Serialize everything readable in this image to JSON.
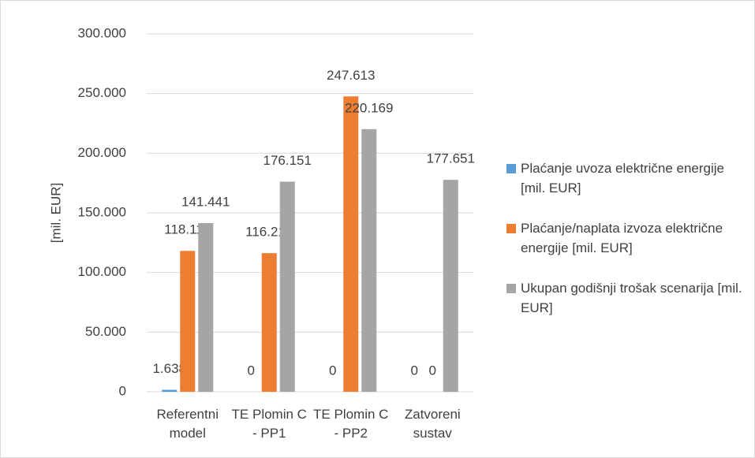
{
  "chart_data": {
    "type": "bar",
    "y_label": "[mil. EUR]",
    "categories": [
      "Referentni model",
      "TE Plomin C - PP1",
      "TE Plomin C - PP2",
      "Zatvoreni sustav"
    ],
    "series": [
      {
        "name": "Plaćanje uvoza električne energije [mil. EUR]",
        "color": "#5b9bd5",
        "values": [
          1638,
          0,
          0,
          0
        ],
        "value_labels": [
          "1.638",
          "0",
          "0",
          "0"
        ]
      },
      {
        "name": "Plaćanje/naplata izvoza električne energije [mil. EUR]",
        "color": "#ed7d31",
        "values": [
          118114,
          116216,
          247613,
          0
        ],
        "value_labels": [
          "118.114",
          "116.216",
          "247.613",
          "0"
        ]
      },
      {
        "name": "Ukupan godišnji trošak scenarija [mil. EUR]",
        "color": "#a5a5a5",
        "values": [
          141441,
          176151,
          220169,
          177651
        ],
        "value_labels": [
          "141.441",
          "176.151",
          "220.169",
          "177.651"
        ]
      }
    ],
    "ylim": [
      0,
      300000
    ],
    "yticks": [
      0,
      {
        "value": 50000,
        "label": "50.000"
      },
      {
        "value": 100000,
        "label": "100.000"
      },
      {
        "value": 150000,
        "label": "150.000"
      },
      {
        "value": 200000,
        "label": "200.000"
      },
      {
        "value": 250000,
        "label": "250.000"
      },
      {
        "value": 300000,
        "label": "300.000"
      }
    ],
    "grid": true,
    "legend": "right"
  }
}
